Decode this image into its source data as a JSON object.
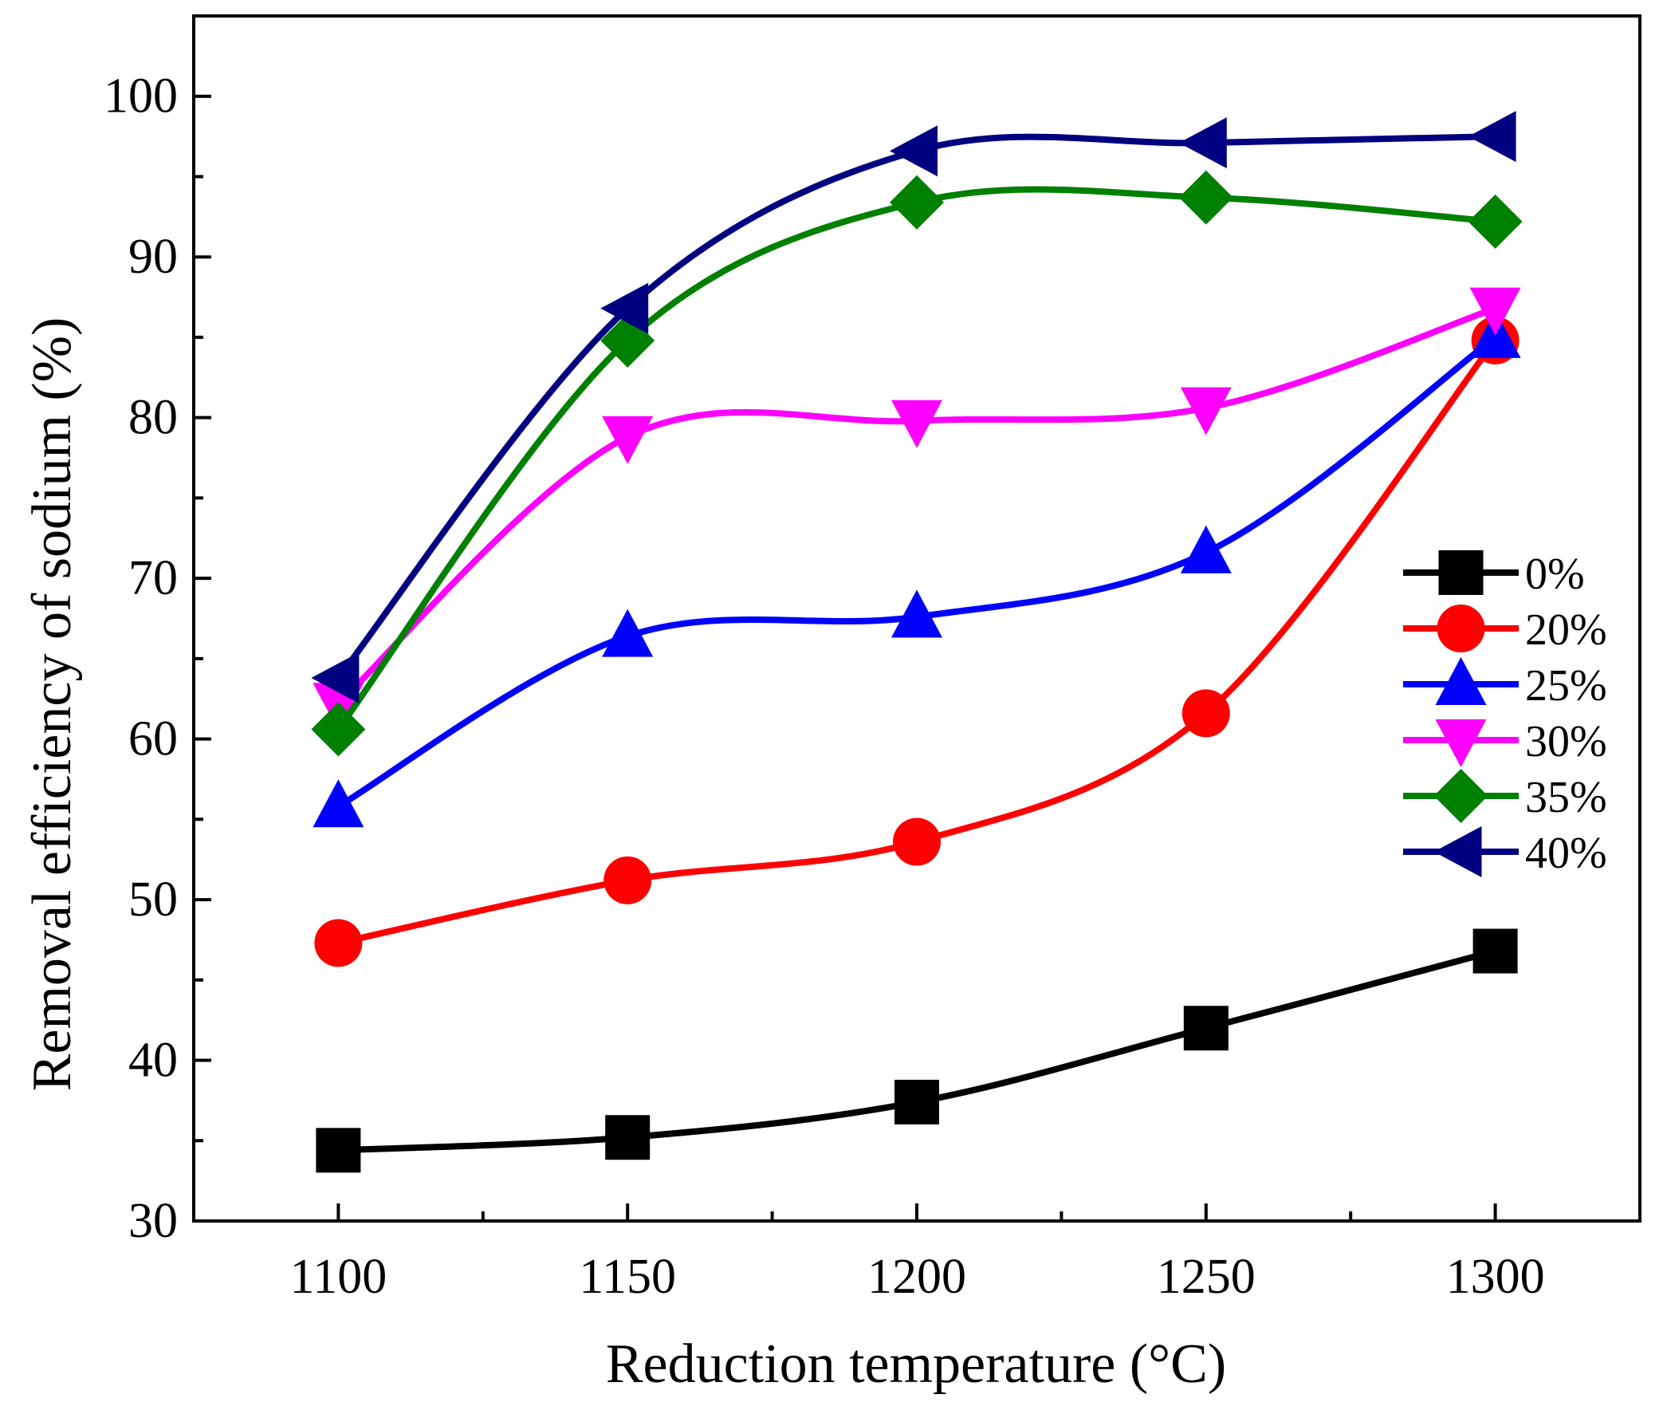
{
  "chart_data": {
    "type": "line",
    "title": "",
    "xlabel": "Reduction temperature (°C)",
    "ylabel": "Removal efficiency of sodium (%)",
    "x": [
      1100,
      1150,
      1200,
      1250,
      1300
    ],
    "xlim": [
      1075,
      1325
    ],
    "ylim": [
      30,
      105
    ],
    "xticks": [
      "1100",
      "1150",
      "1200",
      "1250",
      "1300"
    ],
    "yticks": [
      "30",
      "40",
      "50",
      "60",
      "70",
      "80",
      "90",
      "100"
    ],
    "grid": false,
    "legend_position": "right",
    "series": [
      {
        "name": "0%",
        "color": "#000000",
        "marker": "square",
        "values": [
          34.4,
          35.2,
          37.4,
          42.0,
          46.8
        ]
      },
      {
        "name": "20%",
        "color": "#ff0000",
        "marker": "circle",
        "values": [
          47.3,
          51.2,
          53.6,
          61.6,
          84.8
        ]
      },
      {
        "name": "25%",
        "color": "#0000ff",
        "marker": "triangle-up",
        "values": [
          55.8,
          66.4,
          67.6,
          71.6,
          85.0
        ]
      },
      {
        "name": "30%",
        "color": "#ff00ff",
        "marker": "triangle-down",
        "values": [
          62.2,
          78.8,
          79.8,
          80.6,
          86.8
        ]
      },
      {
        "name": "35%",
        "color": "#008000",
        "marker": "diamond",
        "values": [
          60.6,
          84.8,
          93.4,
          93.7,
          92.2
        ]
      },
      {
        "name": "40%",
        "color": "#000080",
        "marker": "triangle-left",
        "values": [
          63.8,
          86.8,
          96.6,
          97.1,
          97.5
        ]
      }
    ]
  }
}
